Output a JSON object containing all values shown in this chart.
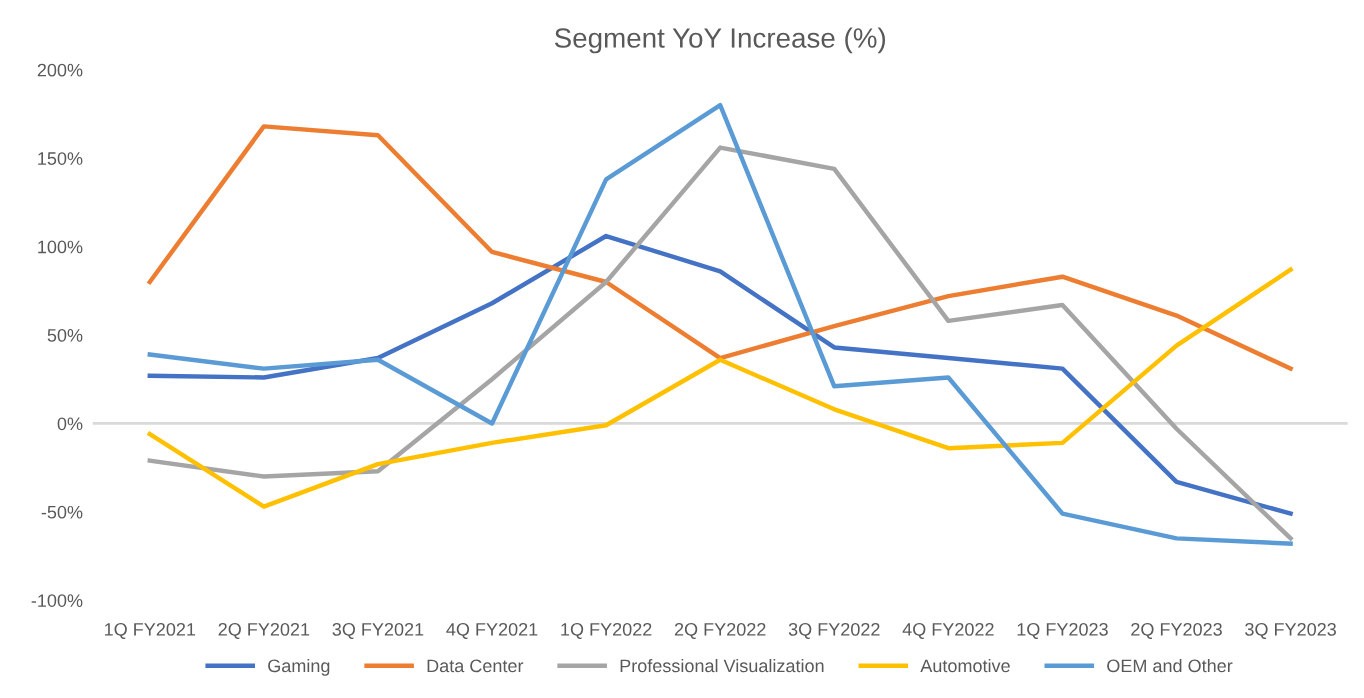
{
  "chart_data": {
    "type": "line",
    "title": "Segment YoY Increase (%)",
    "categories": [
      "1Q FY2021",
      "2Q FY2021",
      "3Q FY2021",
      "4Q FY2021",
      "1Q FY2022",
      "2Q FY2022",
      "3Q FY2022",
      "4Q FY2022",
      "1Q FY2023",
      "2Q FY2023",
      "3Q FY2023"
    ],
    "series": [
      {
        "name": "Gaming",
        "color": "#4472c4",
        "values": [
          27,
          26,
          37,
          68,
          106,
          86,
          43,
          37,
          31,
          -33,
          -51
        ]
      },
      {
        "name": "Data Center",
        "color": "#ed7d31",
        "values": [
          80,
          168,
          163,
          97,
          80,
          37,
          55,
          72,
          83,
          61,
          31
        ]
      },
      {
        "name": "Professional Visualization",
        "color": "#a5a5a5",
        "values": [
          -21,
          -30,
          -27,
          25,
          80,
          156,
          144,
          58,
          67,
          -3,
          -65
        ]
      },
      {
        "name": "Automotive",
        "color": "#ffc000",
        "values": [
          -6,
          -47,
          -23,
          -11,
          -1,
          36,
          8,
          -14,
          -11,
          44,
          87
        ]
      },
      {
        "name": "OEM and Other",
        "color": "#5b9bd5",
        "values": [
          39,
          31,
          36,
          0,
          138,
          180,
          21,
          26,
          -51,
          -65,
          -68
        ]
      }
    ],
    "ylim": [
      -100,
      200
    ],
    "yticks": [
      {
        "value": -100,
        "label": "-100%"
      },
      {
        "value": -50,
        "label": "-50%"
      },
      {
        "value": 0,
        "label": "0%"
      },
      {
        "value": 50,
        "label": "50%"
      },
      {
        "value": 100,
        "label": "100%"
      },
      {
        "value": 150,
        "label": "150%"
      },
      {
        "value": 200,
        "label": "200%"
      }
    ],
    "ref_lines": [
      {
        "axis": "y",
        "value": 0,
        "color": "#d9d9d9"
      }
    ],
    "legend": "bottom",
    "marker": "none",
    "line_style": "solid",
    "grid": false
  }
}
